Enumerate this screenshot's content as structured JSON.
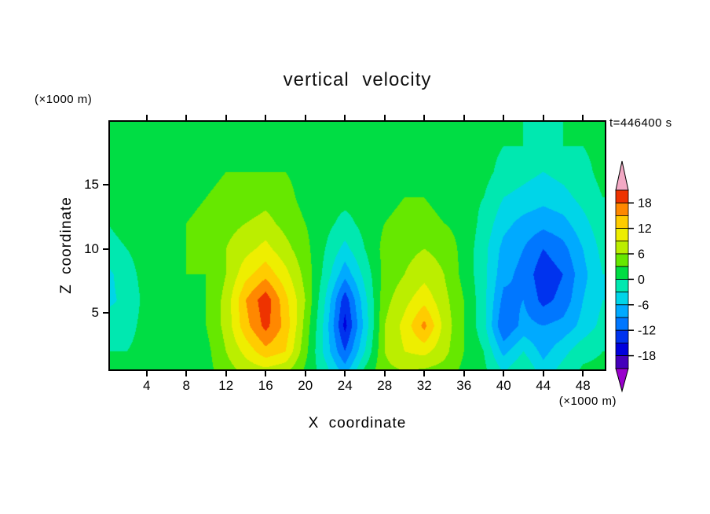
{
  "chart_data": {
    "type": "filled_contour",
    "title": "vertical velocity",
    "xlabel": "X coordinate",
    "ylabel": "Z coordinate",
    "time_label": "t=446400 s",
    "axes": {
      "x_range": [
        0.3,
        50.2
      ],
      "z_range": [
        0.6,
        19.9
      ],
      "x_ticks": [
        4,
        8,
        12,
        16,
        20,
        24,
        28,
        32,
        36,
        40,
        44,
        48
      ],
      "z_ticks": [
        5,
        10,
        15
      ],
      "x_unit": "(×1000 m)",
      "z_unit": "(×1000 m)",
      "grid_lines": false
    },
    "colorbar": {
      "labels": [
        "18",
        "12",
        "6",
        "0",
        "-6",
        "-12",
        "-18"
      ],
      "label_values": [
        18,
        12,
        6,
        0,
        -6,
        -12,
        -18
      ],
      "level_min": -21,
      "level_max": 21,
      "step": 3,
      "band_colors_bottom_to_top": [
        "#4400bb",
        "#0000dd",
        "#0033ee",
        "#0077ff",
        "#00aaff",
        "#00d5e8",
        "#00e8b0",
        "#00dd44",
        "#66e800",
        "#bbee00",
        "#eeee00",
        "#ffcc00",
        "#ff8800",
        "#ee3300"
      ],
      "under_arrow_color": "#9900cc",
      "over_arrow_color": "#f2a9c4",
      "legend_position": "right"
    },
    "grid": {
      "x": [
        0,
        2,
        4,
        6,
        8,
        10,
        12,
        14,
        16,
        18,
        20,
        22,
        24,
        26,
        28,
        30,
        32,
        34,
        36,
        38,
        40,
        42,
        44,
        46,
        48,
        50
      ],
      "z": [
        0,
        2,
        4,
        6,
        8,
        10,
        12,
        14,
        16,
        18,
        20
      ],
      "values": [
        [
          1,
          1,
          2,
          2,
          1,
          2,
          4,
          6,
          6,
          5,
          2,
          -1,
          -6,
          2,
          5,
          5,
          4,
          4,
          2,
          1,
          -2,
          1,
          -4,
          -1,
          1,
          1
        ],
        [
          0,
          0,
          1,
          2,
          1,
          2,
          6,
          10,
          14,
          12,
          4,
          -4,
          -12,
          -3,
          6,
          9,
          10,
          7,
          3,
          0,
          -7,
          -3,
          -7,
          -4,
          -1,
          0
        ],
        [
          -1,
          -1,
          1,
          2,
          2,
          3,
          7,
          14,
          19,
          14,
          5,
          -4,
          -16,
          -5,
          6,
          10,
          16,
          8,
          3,
          -2,
          -12,
          -8,
          -9,
          -8,
          -5,
          -2
        ],
        [
          -4,
          -2,
          1,
          2,
          2,
          3,
          7,
          15,
          20,
          13,
          6,
          -3,
          -14,
          -4,
          5,
          8,
          11,
          7,
          3,
          -2,
          -10,
          -9,
          -13,
          -11,
          -6,
          -3
        ],
        [
          -4,
          -1,
          1,
          2,
          3,
          3,
          6,
          11,
          14,
          10,
          5,
          -1,
          -8,
          -2,
          4,
          6,
          8,
          6,
          2,
          -2,
          -8,
          -10,
          -14,
          -12,
          -7,
          -3
        ],
        [
          -1,
          0,
          1,
          2,
          3,
          4,
          6,
          8,
          10,
          7,
          4,
          0,
          -4,
          0,
          4,
          5,
          6,
          5,
          2,
          -2,
          -7,
          -9,
          -12,
          -10,
          -6,
          -2
        ],
        [
          0,
          1,
          2,
          2,
          3,
          4,
          5,
          6,
          7,
          5,
          3,
          1,
          -1,
          1,
          3,
          4,
          4,
          3,
          2,
          -1,
          -5,
          -7,
          -8,
          -7,
          -4,
          -1
        ],
        [
          1,
          1,
          2,
          2,
          2,
          3,
          4,
          4,
          5,
          4,
          2,
          1,
          1,
          1,
          2,
          3,
          3,
          2,
          1,
          0,
          -3,
          -4,
          -5,
          -4,
          -2,
          0
        ],
        [
          1,
          1,
          1,
          2,
          2,
          2,
          3,
          3,
          3,
          3,
          2,
          1,
          1,
          1,
          2,
          2,
          2,
          2,
          1,
          1,
          -1,
          -2,
          -3,
          -2,
          -1,
          1
        ],
        [
          1,
          1,
          1,
          1,
          1,
          2,
          2,
          2,
          2,
          2,
          1,
          1,
          1,
          1,
          1,
          2,
          2,
          1,
          1,
          1,
          0,
          0,
          -1,
          0,
          0,
          1
        ],
        [
          1,
          1,
          1,
          1,
          1,
          1,
          1,
          1,
          1,
          1,
          1,
          1,
          1,
          1,
          1,
          1,
          1,
          1,
          1,
          1,
          1,
          0,
          0,
          0,
          1,
          1
        ]
      ]
    }
  }
}
